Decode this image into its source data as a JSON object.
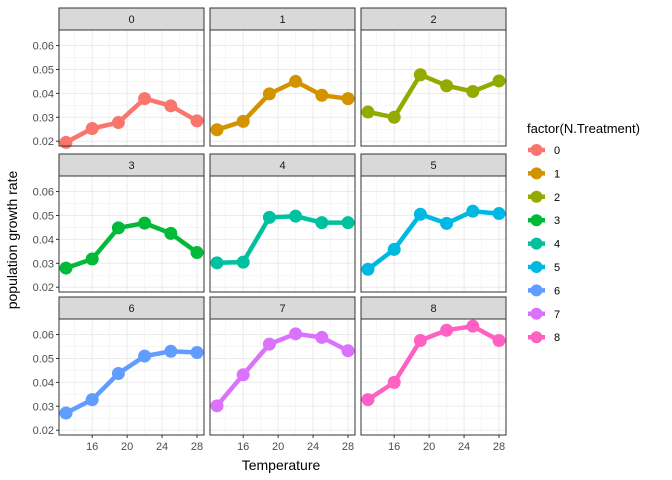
{
  "chart_data": {
    "type": "line",
    "facet_variable": "N.Treatment",
    "xlabel": "Temperature",
    "ylabel": "population growth rate",
    "x_ticks": [
      16,
      20,
      24,
      28
    ],
    "y_ticks": [
      0.02,
      0.03,
      0.04,
      0.05,
      0.06
    ],
    "y_tick_labels": [
      "0.02",
      "0.03",
      "0.04",
      "0.05",
      "0.06"
    ],
    "xlim": [
      12.2,
      28.8
    ],
    "ylim": [
      0.018,
      0.0665
    ],
    "grid": true,
    "legend": {
      "title": "factor(N.Treatment)",
      "position": "right"
    },
    "x": [
      13,
      16,
      19,
      22,
      25,
      28
    ],
    "series": [
      {
        "name": "0",
        "color": "#F8766D",
        "values": [
          0.0195,
          0.0253,
          0.0278,
          0.0378,
          0.0348,
          0.0285
        ]
      },
      {
        "name": "1",
        "color": "#D39200",
        "values": [
          0.0248,
          0.0283,
          0.0398,
          0.045,
          0.0392,
          0.0378
        ]
      },
      {
        "name": "2",
        "color": "#93AA00",
        "values": [
          0.0322,
          0.03,
          0.0478,
          0.0432,
          0.0408,
          0.0452
        ]
      },
      {
        "name": "3",
        "color": "#00BA38",
        "values": [
          0.028,
          0.0318,
          0.0448,
          0.0468,
          0.0425,
          0.0345
        ]
      },
      {
        "name": "4",
        "color": "#00C19F",
        "values": [
          0.0302,
          0.0305,
          0.0492,
          0.0497,
          0.047,
          0.047
        ]
      },
      {
        "name": "5",
        "color": "#00B9E3",
        "values": [
          0.0275,
          0.0358,
          0.0505,
          0.0467,
          0.0518,
          0.0508
        ]
      },
      {
        "name": "6",
        "color": "#619CFF",
        "values": [
          0.0272,
          0.0328,
          0.0437,
          0.051,
          0.053,
          0.0525
        ]
      },
      {
        "name": "7",
        "color": "#DB72FB",
        "values": [
          0.0302,
          0.0432,
          0.056,
          0.0603,
          0.0588,
          0.0532
        ]
      },
      {
        "name": "8",
        "color": "#FF61C3",
        "values": [
          0.0328,
          0.04,
          0.0575,
          0.0618,
          0.0635,
          0.0575
        ]
      }
    ]
  }
}
